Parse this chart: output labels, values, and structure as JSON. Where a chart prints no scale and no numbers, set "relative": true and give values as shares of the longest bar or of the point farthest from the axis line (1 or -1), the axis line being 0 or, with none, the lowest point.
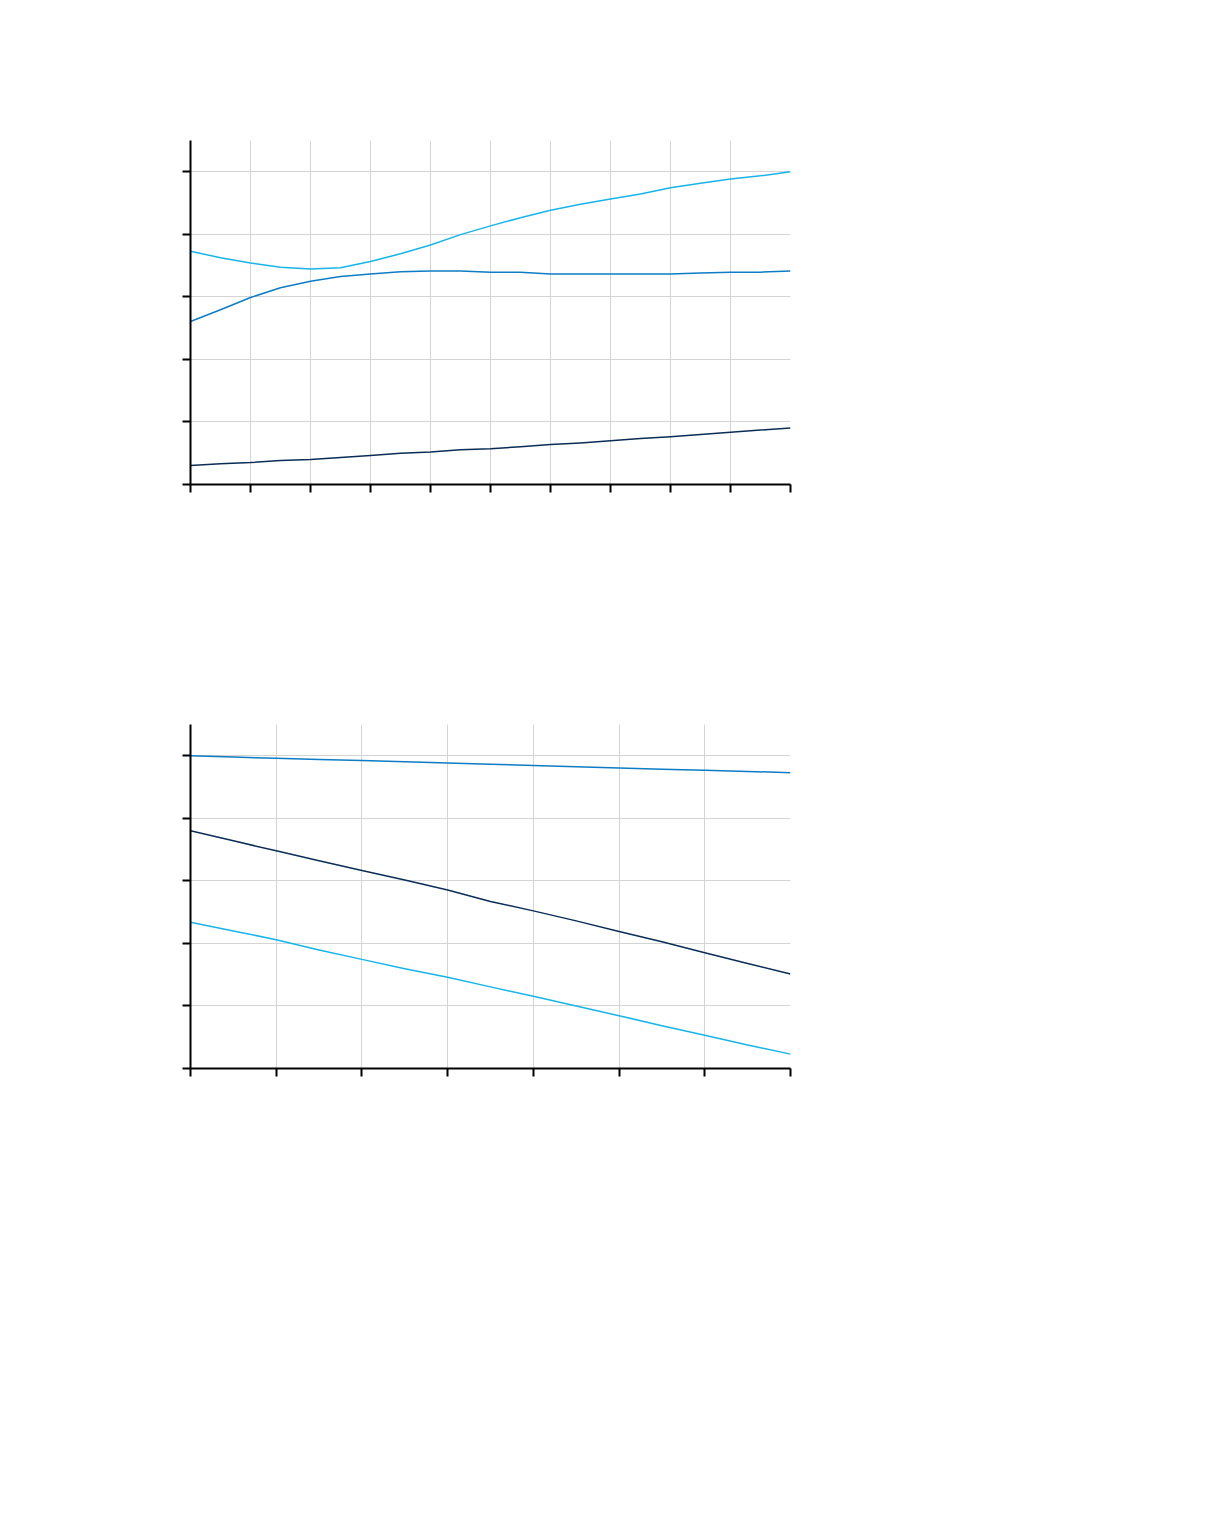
{
  "chart_data": [
    {
      "type": "line",
      "relative": true,
      "grid": true,
      "categories": [
        null,
        null,
        null,
        null,
        null,
        null,
        null,
        null,
        null,
        null,
        null,
        null,
        null,
        null,
        null,
        null,
        null,
        null,
        null,
        null,
        null
      ],
      "series": [
        {
          "color": "#18b4e9",
          "values": [
            0.746,
            0.725,
            0.708,
            0.695,
            0.689,
            0.693,
            0.713,
            0.738,
            0.766,
            0.799,
            0.827,
            0.853,
            0.877,
            0.896,
            0.913,
            0.929,
            0.949,
            0.963,
            0.977,
            0.987,
            1.0
          ]
        },
        {
          "color": "#0e7cc4",
          "values": [
            0.521,
            0.559,
            0.598,
            0.629,
            0.65,
            0.665,
            0.673,
            0.68,
            0.683,
            0.683,
            0.679,
            0.679,
            0.673,
            0.673,
            0.673,
            0.673,
            0.673,
            0.676,
            0.679,
            0.679,
            0.683
          ]
        },
        {
          "color": "#0b2d55",
          "values": [
            0.061,
            0.066,
            0.07,
            0.077,
            0.08,
            0.086,
            0.093,
            0.1,
            0.104,
            0.111,
            0.114,
            0.121,
            0.128,
            0.133,
            0.14,
            0.147,
            0.153,
            0.16,
            0.167,
            0.174,
            0.181
          ]
        }
      ]
    },
    {
      "type": "line",
      "relative": true,
      "grid": true,
      "categories": [
        null,
        null,
        null,
        null,
        null,
        null,
        null,
        null,
        null,
        null,
        null,
        null,
        null,
        null,
        null
      ],
      "series": [
        {
          "color": "#0e7cc4",
          "values": [
            1.0,
            0.996,
            0.992,
            0.988,
            0.985,
            0.981,
            0.977,
            0.973,
            0.969,
            0.965,
            0.961,
            0.957,
            0.954,
            0.95,
            0.946
          ]
        },
        {
          "color": "#0b2d55",
          "values": [
            0.76,
            0.728,
            0.696,
            0.664,
            0.633,
            0.603,
            0.571,
            0.534,
            0.504,
            0.472,
            0.438,
            0.405,
            0.37,
            0.336,
            0.302
          ]
        },
        {
          "color": "#18b4e9",
          "values": [
            0.468,
            0.44,
            0.412,
            0.379,
            0.349,
            0.319,
            0.292,
            0.261,
            0.231,
            0.2,
            0.169,
            0.137,
            0.106,
            0.075,
            0.046
          ]
        }
      ]
    }
  ]
}
